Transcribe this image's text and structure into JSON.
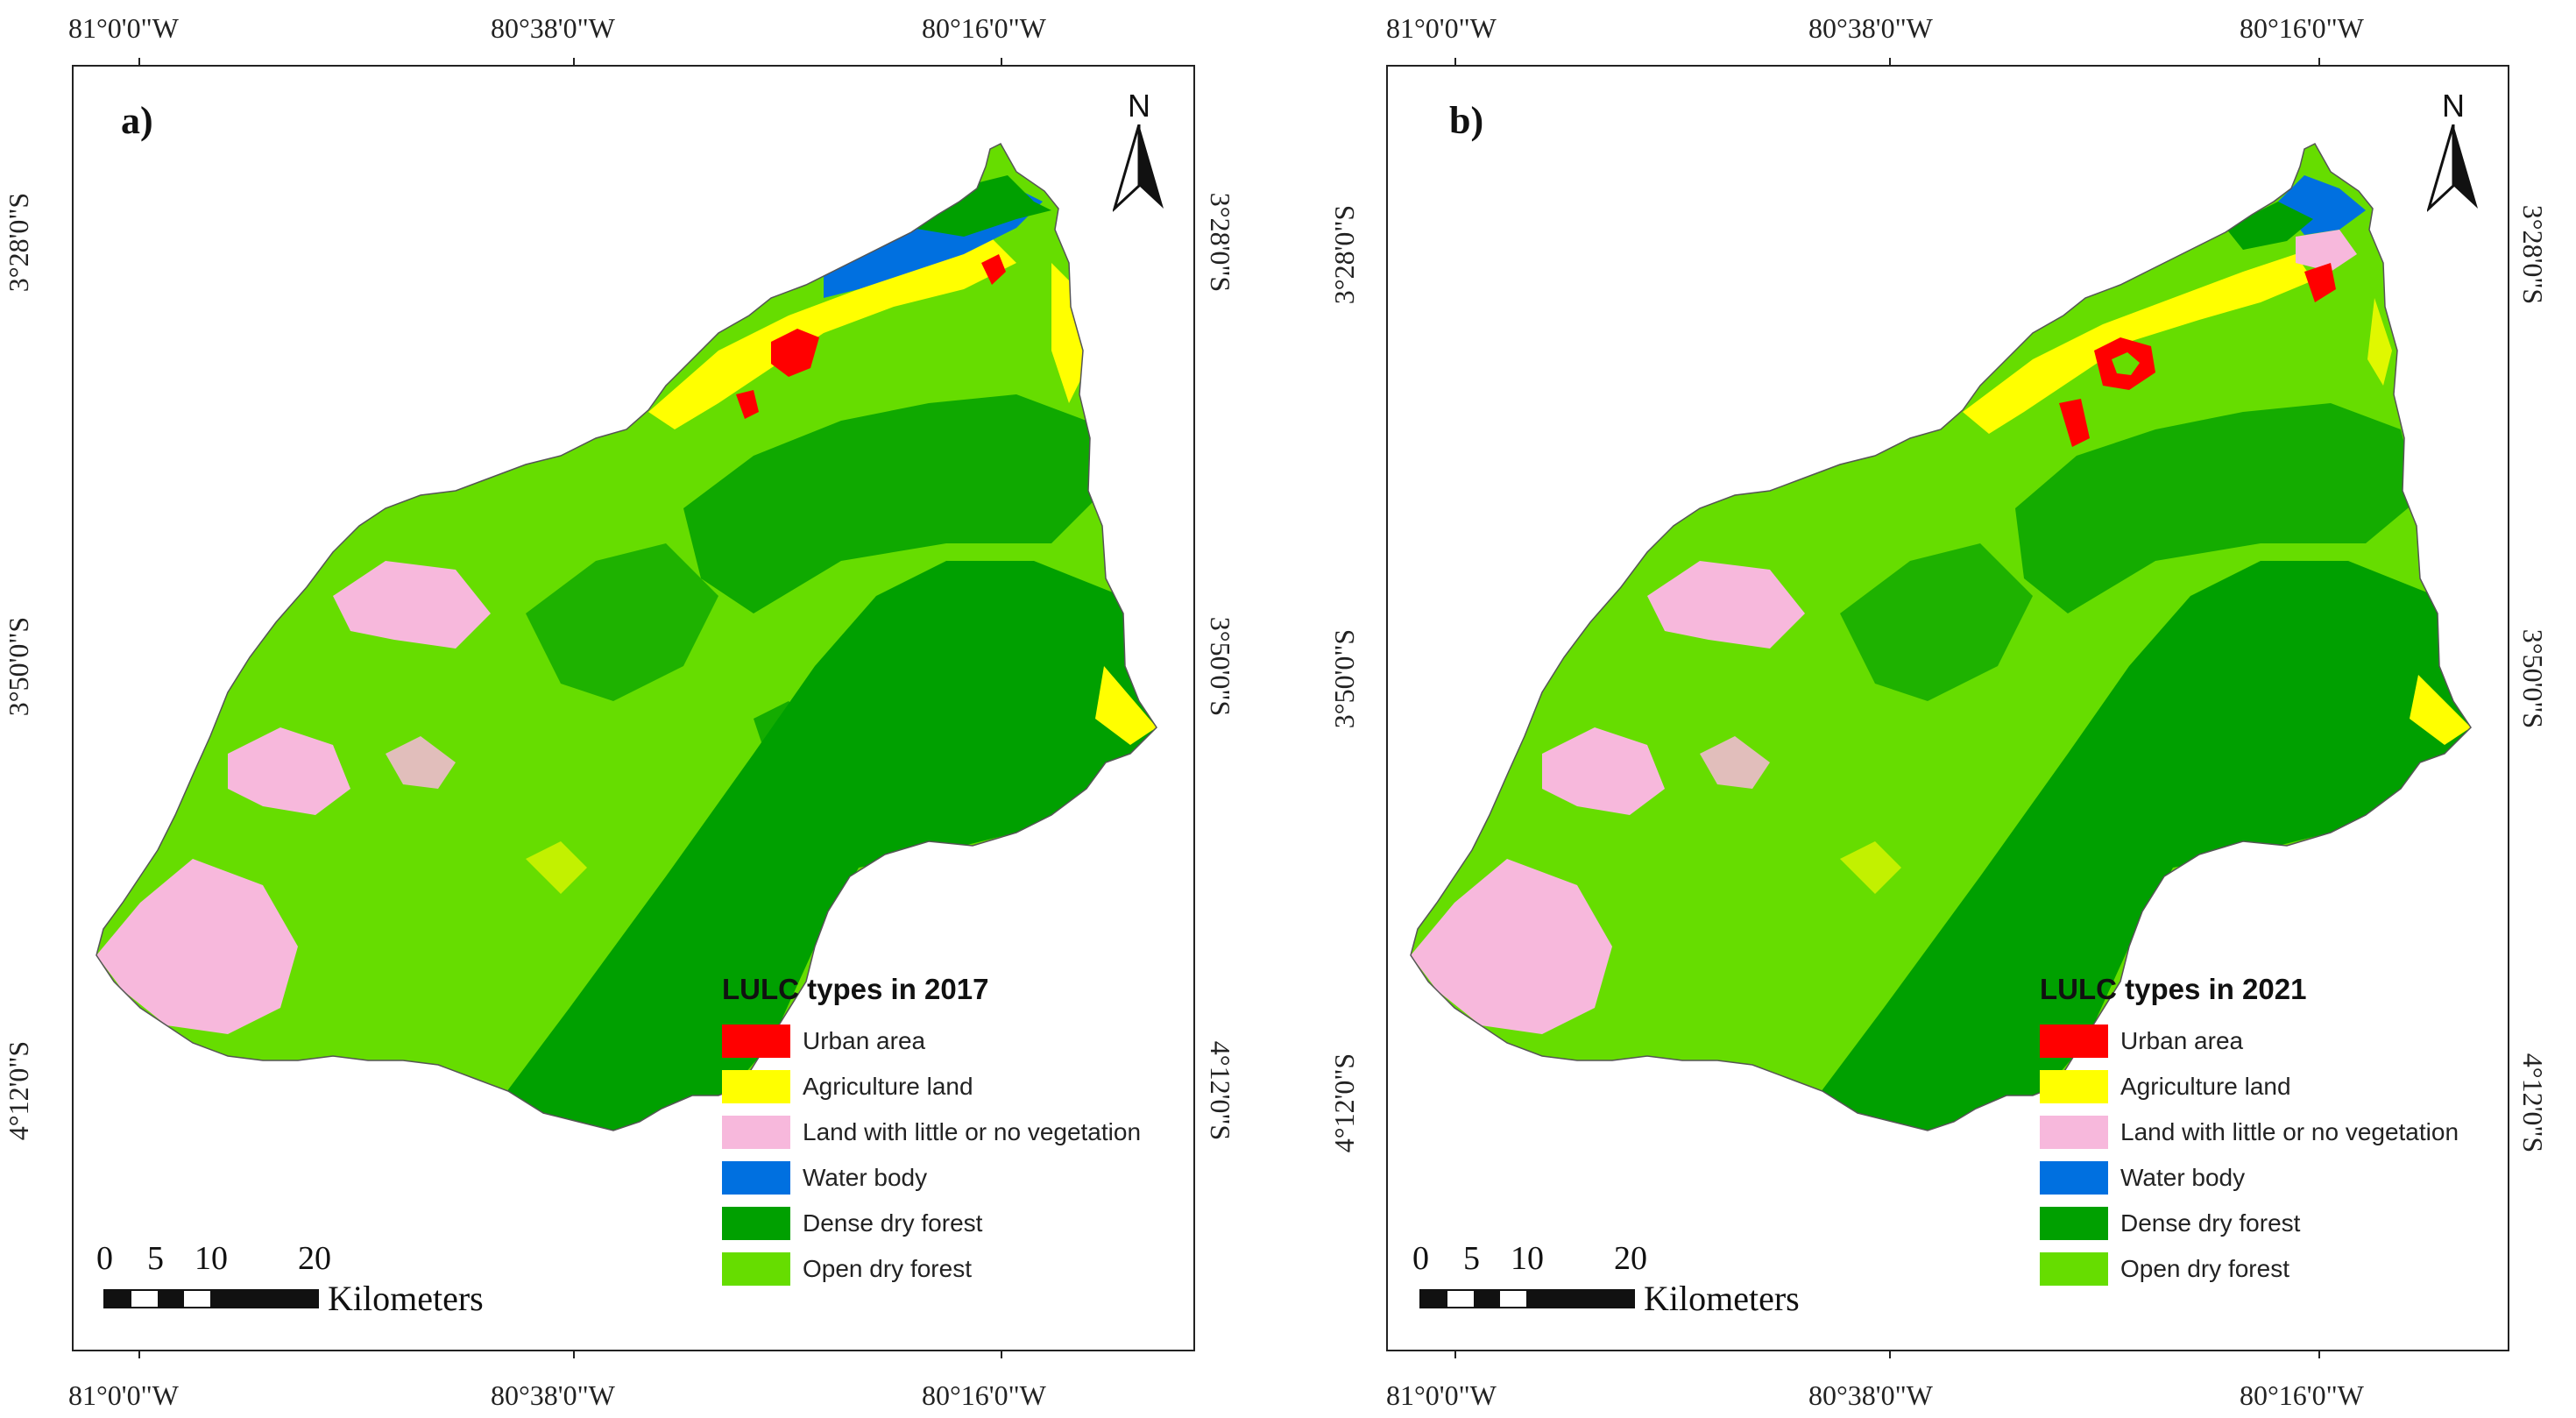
{
  "colors": {
    "urban": "#ff0000",
    "agriculture": "#ffff00",
    "bare": "#f7b8dc",
    "water": "#0070e0",
    "dense": "#00a000",
    "open": "#66dd00"
  },
  "axes": {
    "top_labels": [
      "81°0'0\"W",
      "80°38'0\"W",
      "80°16'0\"W"
    ],
    "bottom_labels": [
      "81°0'0\"W",
      "80°38'0\"W",
      "80°16'0\"W"
    ],
    "side_labels": [
      "3°28'0\"S",
      "3°50'0\"S",
      "4°12'0\"S"
    ]
  },
  "panels": [
    {
      "label": "a)",
      "north": "N",
      "legend": {
        "title": "LULC types in 2017",
        "items": [
          {
            "label": "Urban area",
            "color": "#ff0000"
          },
          {
            "label": "Agriculture land",
            "color": "#ffff00"
          },
          {
            "label": "Land with little or no vegetation",
            "color": "#f7b8dc"
          },
          {
            "label": "Water body",
            "color": "#0070e0"
          },
          {
            "label": "Dense dry forest",
            "color": "#00a000"
          },
          {
            "label": "Open dry forest",
            "color": "#66dd00"
          }
        ]
      },
      "scale": {
        "ticks": [
          "0",
          "5",
          "10",
          "20"
        ],
        "unit": "Kilometers"
      }
    },
    {
      "label": "b)",
      "north": "N",
      "legend": {
        "title": "LULC types in 2021",
        "items": [
          {
            "label": "Urban area",
            "color": "#ff0000"
          },
          {
            "label": "Agriculture land",
            "color": "#ffff00"
          },
          {
            "label": "Land with little or no vegetation",
            "color": "#f7b8dc"
          },
          {
            "label": "Water body",
            "color": "#0070e0"
          },
          {
            "label": "Dense dry forest",
            "color": "#00a000"
          },
          {
            "label": "Open dry forest",
            "color": "#66dd00"
          }
        ]
      },
      "scale": {
        "ticks": [
          "0",
          "5",
          "10",
          "20"
        ],
        "unit": "Kilometers"
      }
    }
  ]
}
